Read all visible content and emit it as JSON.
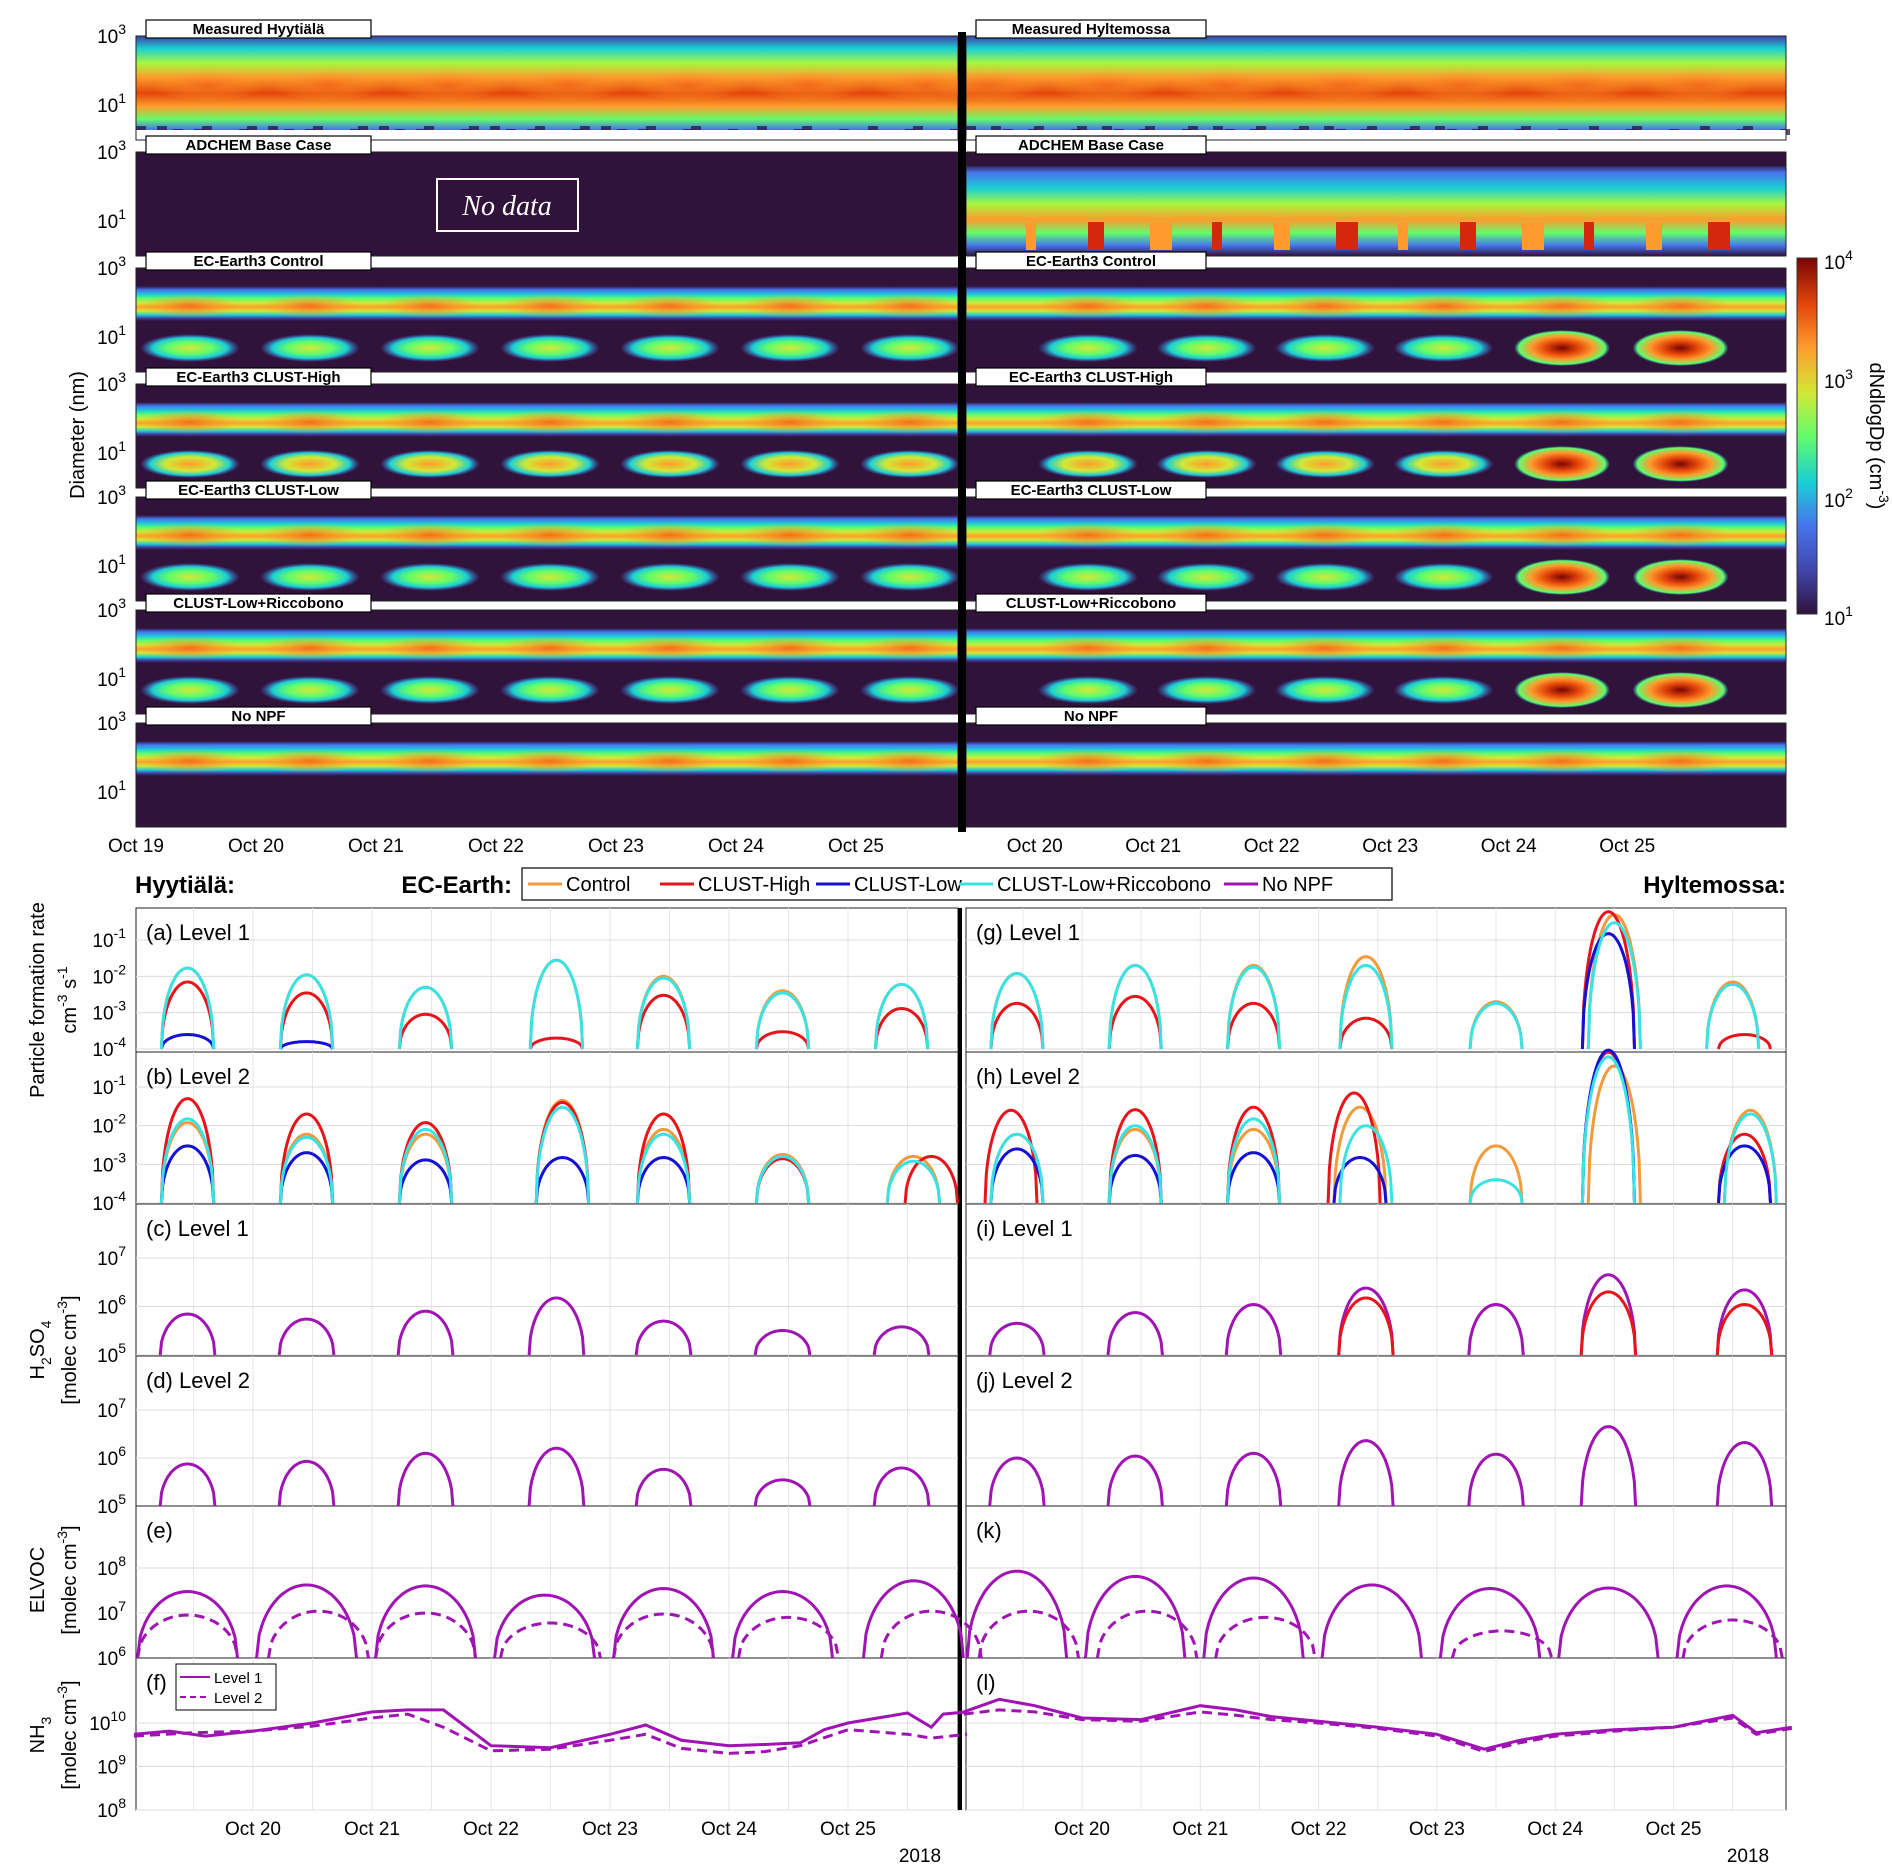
{
  "colors": {
    "Control": "#f39a3a",
    "CLUST-High": "#e8141b",
    "CLUST-Low": "#1410d8",
    "CLUST-Low+Riccobono": "#39e3e3",
    "No NPF": "#a014b4",
    "NH3": "#a012b4",
    "divider": "#000000"
  },
  "top": {
    "ylabel": "Diameter (nm)",
    "y_ticks": [
      "10",
      "10"
    ],
    "y_tick_exp": [
      "3",
      "1"
    ],
    "panels": [
      {
        "left": "Measured Hyytiälä",
        "right": "Measured Hyltemossa"
      },
      {
        "left": "ADCHEM Base Case",
        "right": "ADCHEM Base Case"
      },
      {
        "left": "EC-Earth3 Control",
        "right": "EC-Earth3 Control"
      },
      {
        "left": "EC-Earth3 CLUST-High",
        "right": "EC-Earth3 CLUST-High"
      },
      {
        "left": "EC-Earth3 CLUST-Low",
        "right": "EC-Earth3 CLUST-Low"
      },
      {
        "left": "CLUST-Low+Riccobono",
        "right": "CLUST-Low+Riccobono"
      },
      {
        "left": "No NPF",
        "right": "No NPF"
      }
    ],
    "no_data": "No data",
    "x_ticks_left": [
      "Oct 19",
      "Oct 20",
      "Oct 21",
      "Oct 22",
      "Oct 23",
      "Oct 24",
      "Oct 25"
    ],
    "x_ticks_right": [
      "Oct 20",
      "Oct 21",
      "Oct 22",
      "Oct 23",
      "Oct 24",
      "Oct 25"
    ],
    "colorbar": {
      "label": "dNdlogDp (cm",
      "label_exp": "-3",
      "label_close": ")",
      "ticks": [
        "10",
        "10",
        "10",
        "10"
      ],
      "tick_exp": [
        "4",
        "3",
        "2",
        "1"
      ],
      "range": [
        10,
        10000
      ],
      "scale": "log"
    }
  },
  "legend": {
    "left_region": "Hyytiälä:",
    "right_region": "Hyltemossa:",
    "title": "EC-Earth:",
    "entries": [
      "Control",
      "CLUST-High",
      "CLUST-Low",
      "CLUST-Low+Riccobono",
      "No NPF"
    ]
  },
  "bottom": {
    "x_ticks_left": [
      "Oct 20",
      "Oct 21",
      "Oct 22",
      "Oct 23",
      "Oct 24",
      "Oct 25"
    ],
    "x_ticks_right": [
      "Oct 20",
      "Oct 21",
      "Oct 22",
      "Oct 23",
      "Oct 24",
      "Oct 25"
    ],
    "year": "2018",
    "ylabels": {
      "formation": [
        "Particle formation rate",
        "cm",
        "-3",
        " s",
        "-1"
      ],
      "h2so4": [
        "H",
        "2",
        "SO",
        "4",
        "[molec cm",
        "-3",
        "]"
      ],
      "elvoc": [
        "ELVOC",
        "[molec cm",
        "-3",
        "]"
      ],
      "nh3": [
        "NH",
        "3",
        "[molec cm",
        "-3",
        "]"
      ]
    },
    "nh3_legend": [
      "Level 1",
      "Level 2"
    ],
    "rows": [
      {
        "left_label": "(a)  Level 1",
        "right_label": "(g)  Level 1",
        "y_tick_exp": [
          "-1",
          "-2",
          "-3",
          "-4"
        ]
      },
      {
        "left_label": "(b)  Level 2",
        "right_label": "(h)  Level 2",
        "y_tick_exp": [
          "-1",
          "-2",
          "-3",
          "-4"
        ]
      },
      {
        "left_label": "(c)  Level 1",
        "right_label": "(i)  Level 1",
        "y_tick_exp": [
          "7",
          "6",
          "5"
        ]
      },
      {
        "left_label": "(d)  Level 2",
        "right_label": "(j)  Level 2",
        "y_tick_exp": [
          "7",
          "6",
          "5"
        ]
      },
      {
        "left_label": "(e)",
        "right_label": "(k)",
        "y_tick_exp": [
          "8",
          "7",
          "6"
        ]
      },
      {
        "left_label": "(f)",
        "right_label": "(l)",
        "y_tick_exp": [
          "10",
          "9",
          "8"
        ]
      }
    ]
  },
  "chart_data": {
    "type": "line",
    "title": "",
    "x_units": "days (Oct 2018)",
    "series": [
      {
        "name": "Control",
        "panel": "(a)",
        "x": [
          19.45,
          20.45,
          21.45,
          22.55,
          23.45,
          24.45,
          25.45
        ],
        "values": [
          0.017,
          0.011,
          0.005,
          0.028,
          0.01,
          0.004,
          0.006
        ]
      },
      {
        "name": "CLUST-High",
        "panel": "(a)",
        "x": [
          19.45,
          20.45,
          21.45,
          22.55,
          23.45,
          24.45,
          25.45
        ],
        "values": [
          0.007,
          0.0035,
          0.0009,
          0.0002,
          0.003,
          0.0003,
          0.0013
        ]
      },
      {
        "name": "CLUST-Low",
        "panel": "(a)",
        "x": [
          19.45,
          20.45
        ],
        "values": [
          0.00025,
          0.00016
        ]
      },
      {
        "name": "CLUST-Low+Riccobono",
        "panel": "(a)",
        "x": [
          19.45,
          20.45,
          21.45,
          22.55,
          23.45,
          24.45,
          25.45
        ],
        "values": [
          0.017,
          0.011,
          0.005,
          0.028,
          0.009,
          0.0035,
          0.006
        ]
      },
      {
        "name": "Control",
        "panel": "(g)",
        "x": [
          19.45,
          20.45,
          21.45,
          22.4,
          23.5,
          24.5,
          25.5
        ],
        "values": [
          0.012,
          0.02,
          0.02,
          0.035,
          0.002,
          0.5,
          0.007
        ]
      },
      {
        "name": "CLUST-High",
        "panel": "(g)",
        "x": [
          19.45,
          20.45,
          21.45,
          22.4,
          24.45,
          25.6
        ],
        "values": [
          0.0018,
          0.0028,
          0.0018,
          0.0007,
          0.6,
          0.00025
        ]
      },
      {
        "name": "CLUST-Low",
        "panel": "(g)",
        "x": [
          24.45
        ],
        "values": [
          0.15
        ]
      },
      {
        "name": "CLUST-Low+Riccobono",
        "panel": "(g)",
        "x": [
          19.45,
          20.45,
          21.45,
          22.4,
          23.5,
          24.5,
          25.5
        ],
        "values": [
          0.012,
          0.02,
          0.018,
          0.02,
          0.0018,
          0.3,
          0.006
        ]
      },
      {
        "name": "Control",
        "panel": "(b)",
        "x": [
          19.45,
          20.45,
          21.45,
          22.6,
          23.45,
          24.45,
          25.55
        ],
        "values": [
          0.012,
          0.006,
          0.006,
          0.045,
          0.008,
          0.0018,
          0.0016
        ]
      },
      {
        "name": "CLUST-High",
        "panel": "(b)",
        "x": [
          19.45,
          20.45,
          21.45,
          22.6,
          23.45,
          24.45,
          25.7
        ],
        "values": [
          0.05,
          0.02,
          0.012,
          0.04,
          0.02,
          0.0014,
          0.0016
        ]
      },
      {
        "name": "CLUST-Low",
        "panel": "(b)",
        "x": [
          19.45,
          20.45,
          21.45,
          22.6,
          23.45
        ],
        "values": [
          0.003,
          0.002,
          0.0013,
          0.0015,
          0.0015
        ]
      },
      {
        "name": "CLUST-Low+Riccobono",
        "panel": "(b)",
        "x": [
          19.45,
          20.45,
          21.45,
          22.6,
          23.45,
          24.45,
          25.55
        ],
        "values": [
          0.015,
          0.005,
          0.008,
          0.03,
          0.006,
          0.0016,
          0.0012
        ]
      },
      {
        "name": "Control",
        "panel": "(h)",
        "x": [
          19.45,
          20.45,
          21.45,
          22.35,
          23.5,
          24.5,
          25.65
        ],
        "values": [
          0.006,
          0.008,
          0.008,
          0.03,
          0.003,
          0.35,
          0.025
        ]
      },
      {
        "name": "CLUST-High",
        "panel": "(h)",
        "x": [
          19.4,
          20.45,
          21.45,
          22.3,
          24.45,
          25.6
        ],
        "values": [
          0.025,
          0.026,
          0.03,
          0.07,
          0.8,
          0.006
        ]
      },
      {
        "name": "CLUST-Low",
        "panel": "(h)",
        "x": [
          19.45,
          20.45,
          21.45,
          22.35,
          24.45,
          25.6
        ],
        "values": [
          0.0025,
          0.0017,
          0.002,
          0.0015,
          0.9,
          0.003
        ]
      },
      {
        "name": "CLUST-Low+Riccobono",
        "panel": "(h)",
        "x": [
          19.45,
          20.45,
          21.45,
          22.4,
          23.5,
          24.45,
          25.65
        ],
        "values": [
          0.006,
          0.01,
          0.015,
          0.01,
          0.0004,
          0.6,
          0.02
        ]
      },
      {
        "name": "No NPF",
        "panel": "(c)",
        "x": [
          19.45,
          20.45,
          21.45,
          22.55,
          23.45,
          24.45,
          25.45
        ],
        "values": [
          700000,
          550000,
          800000,
          1500000,
          500000,
          320000,
          380000
        ]
      },
      {
        "name": "No NPF",
        "panel": "(i)",
        "x": [
          19.45,
          20.45,
          21.45,
          22.4,
          23.5,
          24.45,
          25.6
        ],
        "values": [
          450000,
          750000,
          1100000,
          2400000,
          1100000,
          4500000,
          2200000
        ]
      },
      {
        "name": "CLUST-High",
        "panel": "(i)",
        "x": [
          22.4,
          24.45,
          25.6
        ],
        "values": [
          1500000,
          2000000,
          1100000
        ]
      },
      {
        "name": "No NPF",
        "panel": "(d)",
        "x": [
          19.45,
          20.45,
          21.45,
          22.55,
          23.45,
          24.45,
          25.45
        ],
        "values": [
          750000,
          850000,
          1250000,
          1600000,
          580000,
          350000,
          620000
        ]
      },
      {
        "name": "No NPF",
        "panel": "(j)",
        "x": [
          19.45,
          20.45,
          21.45,
          22.4,
          23.5,
          24.45,
          25.6
        ],
        "values": [
          1000000,
          1100000,
          1250000,
          2300000,
          1200000,
          4500000,
          2100000
        ]
      },
      {
        "name": "Level 1",
        "panel": "(e)",
        "x": [
          19.45,
          20.45,
          21.45,
          22.45,
          23.45,
          24.45,
          25.55
        ],
        "values": [
          30000000,
          42000000,
          40000000,
          25000000,
          35000000,
          30000000,
          52000000
        ]
      },
      {
        "name": "Level 2",
        "panel": "(e)",
        "x": [
          19.45,
          20.55,
          21.45,
          22.5,
          23.45,
          24.5,
          25.7
        ],
        "values": [
          9000000,
          11000000,
          10000000,
          6000000,
          9500000,
          8000000,
          11000000
        ]
      },
      {
        "name": "Level 1",
        "panel": "(k)",
        "x": [
          19.45,
          20.45,
          21.45,
          22.45,
          23.45,
          24.45,
          25.45
        ],
        "values": [
          85000000,
          65000000,
          60000000,
          42000000,
          35000000,
          36000000,
          40000000
        ]
      },
      {
        "name": "Level 2",
        "panel": "(k)",
        "x": [
          19.55,
          20.55,
          21.55,
          23.55,
          25.5
        ],
        "values": [
          11000000,
          11000000,
          8000000,
          4000000,
          7000000
        ]
      }
    ],
    "nh3_level1_left": {
      "x": [
        19,
        19.3,
        19.6,
        20,
        20.5,
        21,
        21.3,
        21.6,
        22,
        22.5,
        23,
        23.3,
        23.6,
        24,
        24.3,
        24.6,
        24.8,
        25,
        25.5,
        25.7,
        25.8,
        26
      ],
      "y": [
        5500000000,
        6500000000,
        5000000000,
        6500000000,
        10000000000,
        18000000000,
        20000000000,
        20000000000,
        3000000000,
        2700000000,
        5500000000,
        9000000000,
        4000000000,
        3000000000,
        3200000000,
        3500000000,
        7000000000,
        10000000000,
        17000000000,
        8000000000,
        16000000000,
        18000000000
      ]
    },
    "nh3_level2_left": {
      "x": [
        19,
        19.5,
        20,
        20.5,
        21,
        21.3,
        21.6,
        22,
        22.5,
        23,
        23.3,
        23.6,
        24,
        24.3,
        24.6,
        25,
        25.5,
        25.7,
        26
      ],
      "y": [
        5000000000,
        6000000000,
        6500000000,
        8500000000,
        13000000000,
        16000000000,
        8000000000,
        2300000000,
        2500000000,
        4000000000,
        5500000000,
        2600000000,
        2000000000,
        2200000000,
        3000000000,
        7000000000,
        5500000000,
        4500000000,
        5500000000
      ]
    },
    "nh3_level1_right": {
      "x": [
        19,
        19.3,
        19.6,
        20,
        20.5,
        21,
        21.3,
        21.6,
        22,
        22.5,
        23,
        23.4,
        23.7,
        24,
        24.5,
        25,
        25.5,
        25.7,
        26
      ],
      "y": [
        18000000000,
        35000000000,
        25000000000,
        13000000000,
        12000000000,
        25000000000,
        20000000000,
        14000000000,
        11000000000,
        8000000000,
        5500000000,
        2500000000,
        4000000000,
        5500000000,
        7000000000,
        8000000000,
        15000000000,
        6000000000,
        8000000000
      ]
    },
    "nh3_level2_right": {
      "x": [
        19,
        19.3,
        19.6,
        20,
        20.5,
        21,
        21.3,
        21.6,
        22,
        22.5,
        23,
        23.4,
        23.7,
        24,
        24.5,
        25,
        25.5,
        25.7,
        26
      ],
      "y": [
        16000000000,
        20000000000,
        18000000000,
        12000000000,
        11000000000,
        18000000000,
        15000000000,
        12000000000,
        10000000000,
        7500000000,
        5000000000,
        2200000000,
        3500000000,
        5000000000,
        6500000000,
        8000000000,
        13000000000,
        5500000000,
        7500000000
      ]
    }
  }
}
